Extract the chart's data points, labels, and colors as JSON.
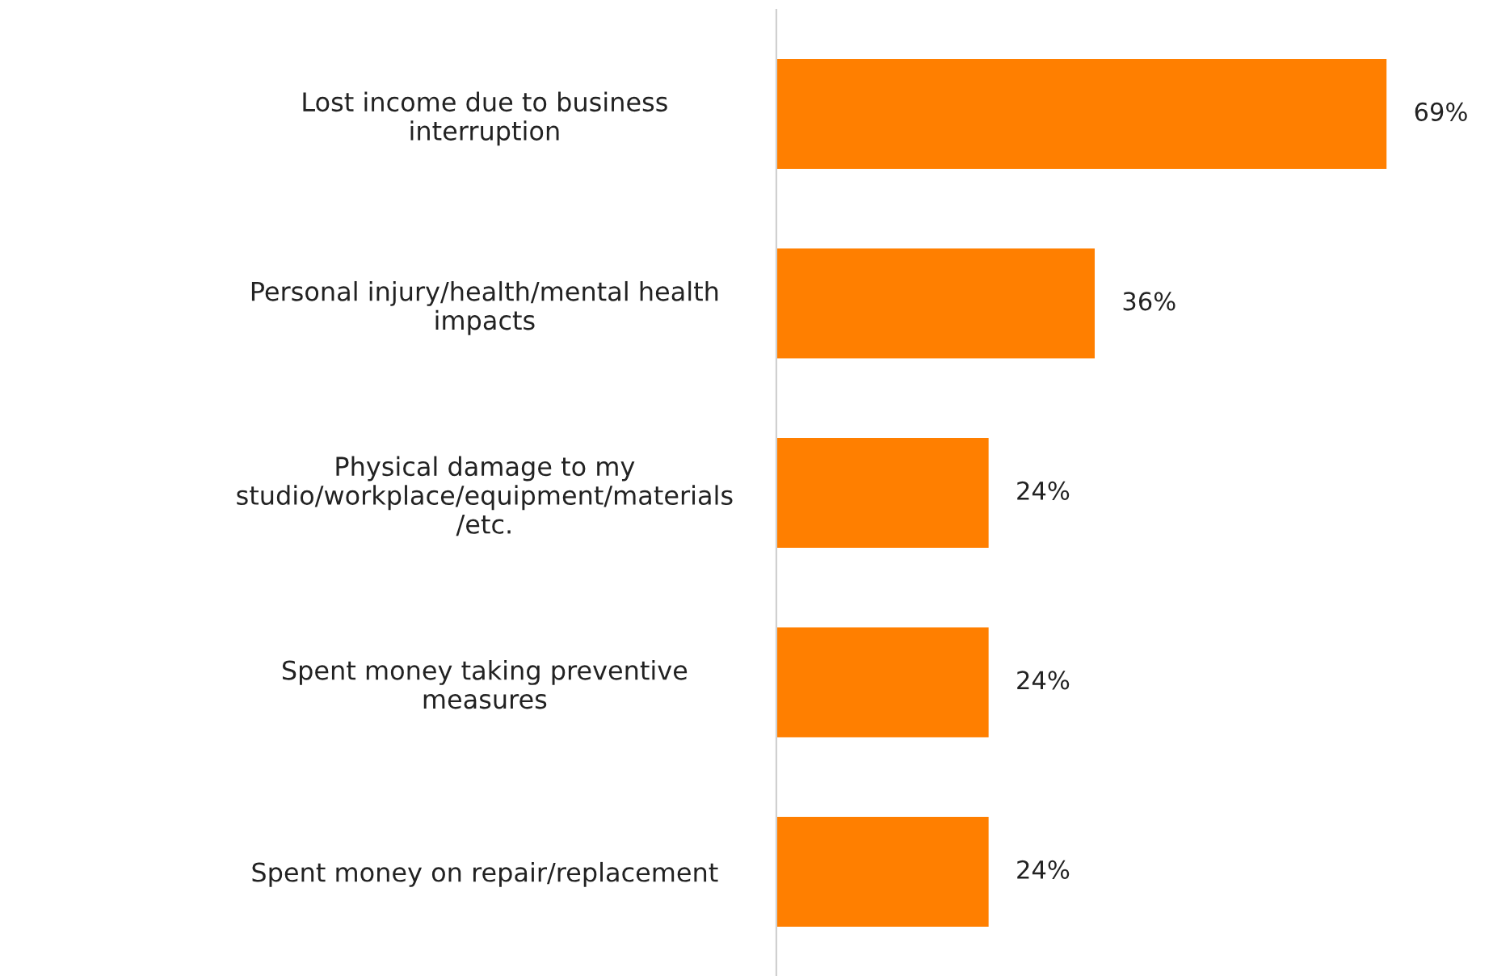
{
  "chart_data": {
    "type": "bar",
    "orientation": "horizontal",
    "categories": [
      "Lost income due to business\ninterruption",
      "Personal injury/health/mental health\nimpacts",
      "Physical damage to my\nstudio/workplace/equipment/materials\n/etc.",
      "Spent money taking preventive\nmeasures",
      "Spent money on repair/replacement"
    ],
    "values": [
      69,
      36,
      24,
      24,
      24
    ],
    "value_labels": [
      "69%",
      "36%",
      "24%",
      "24%",
      "24%"
    ],
    "color": "#ff7f00",
    "grid": false,
    "legend": false
  }
}
